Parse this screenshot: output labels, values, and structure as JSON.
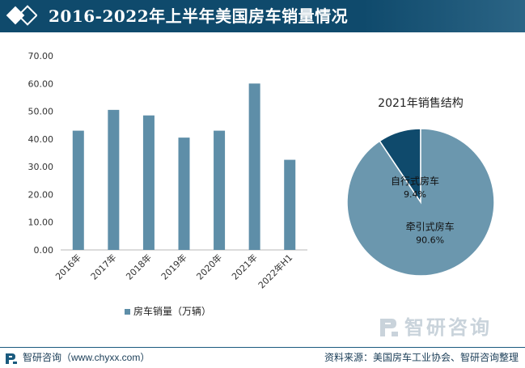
{
  "header": {
    "title": "2016-2022年上半年美国房车销量情况"
  },
  "chart_data": [
    {
      "type": "bar",
      "categories": [
        "2016年",
        "2017年",
        "2018年",
        "2019年",
        "2020年",
        "2021年",
        "2022年H1"
      ],
      "series": [
        {
          "name": "房车销量（万辆）",
          "values": [
            43.0,
            50.5,
            48.5,
            40.5,
            43.0,
            60.0,
            32.5
          ],
          "color": "#5e8ea8"
        }
      ],
      "y_ticks": [
        "0.00",
        "10.00",
        "20.00",
        "30.00",
        "40.00",
        "50.00",
        "60.00",
        "70.00"
      ],
      "ylim": [
        0,
        70
      ],
      "grid": false,
      "legend_position": "bottom-center"
    },
    {
      "type": "pie",
      "title": "2021年销售结构",
      "slices": [
        {
          "label": "牵引式房车",
          "value_label": "90.6%",
          "value": 90.6,
          "color": "#6b97ae"
        },
        {
          "label": "自行式房车",
          "value_label": "9.4%",
          "value": 9.4,
          "color": "#0f4a6c"
        }
      ]
    }
  ],
  "footer": {
    "left": "智研咨询（www.chyxx.com）",
    "right": "资料来源：美国房车工业协会、智研咨询整理"
  },
  "watermark": {
    "text": "智研咨询"
  },
  "colors": {
    "header_bg": "#0f4a6c",
    "bar": "#5e8ea8",
    "pie_major": "#6b97ae",
    "pie_minor": "#0f4a6c"
  }
}
